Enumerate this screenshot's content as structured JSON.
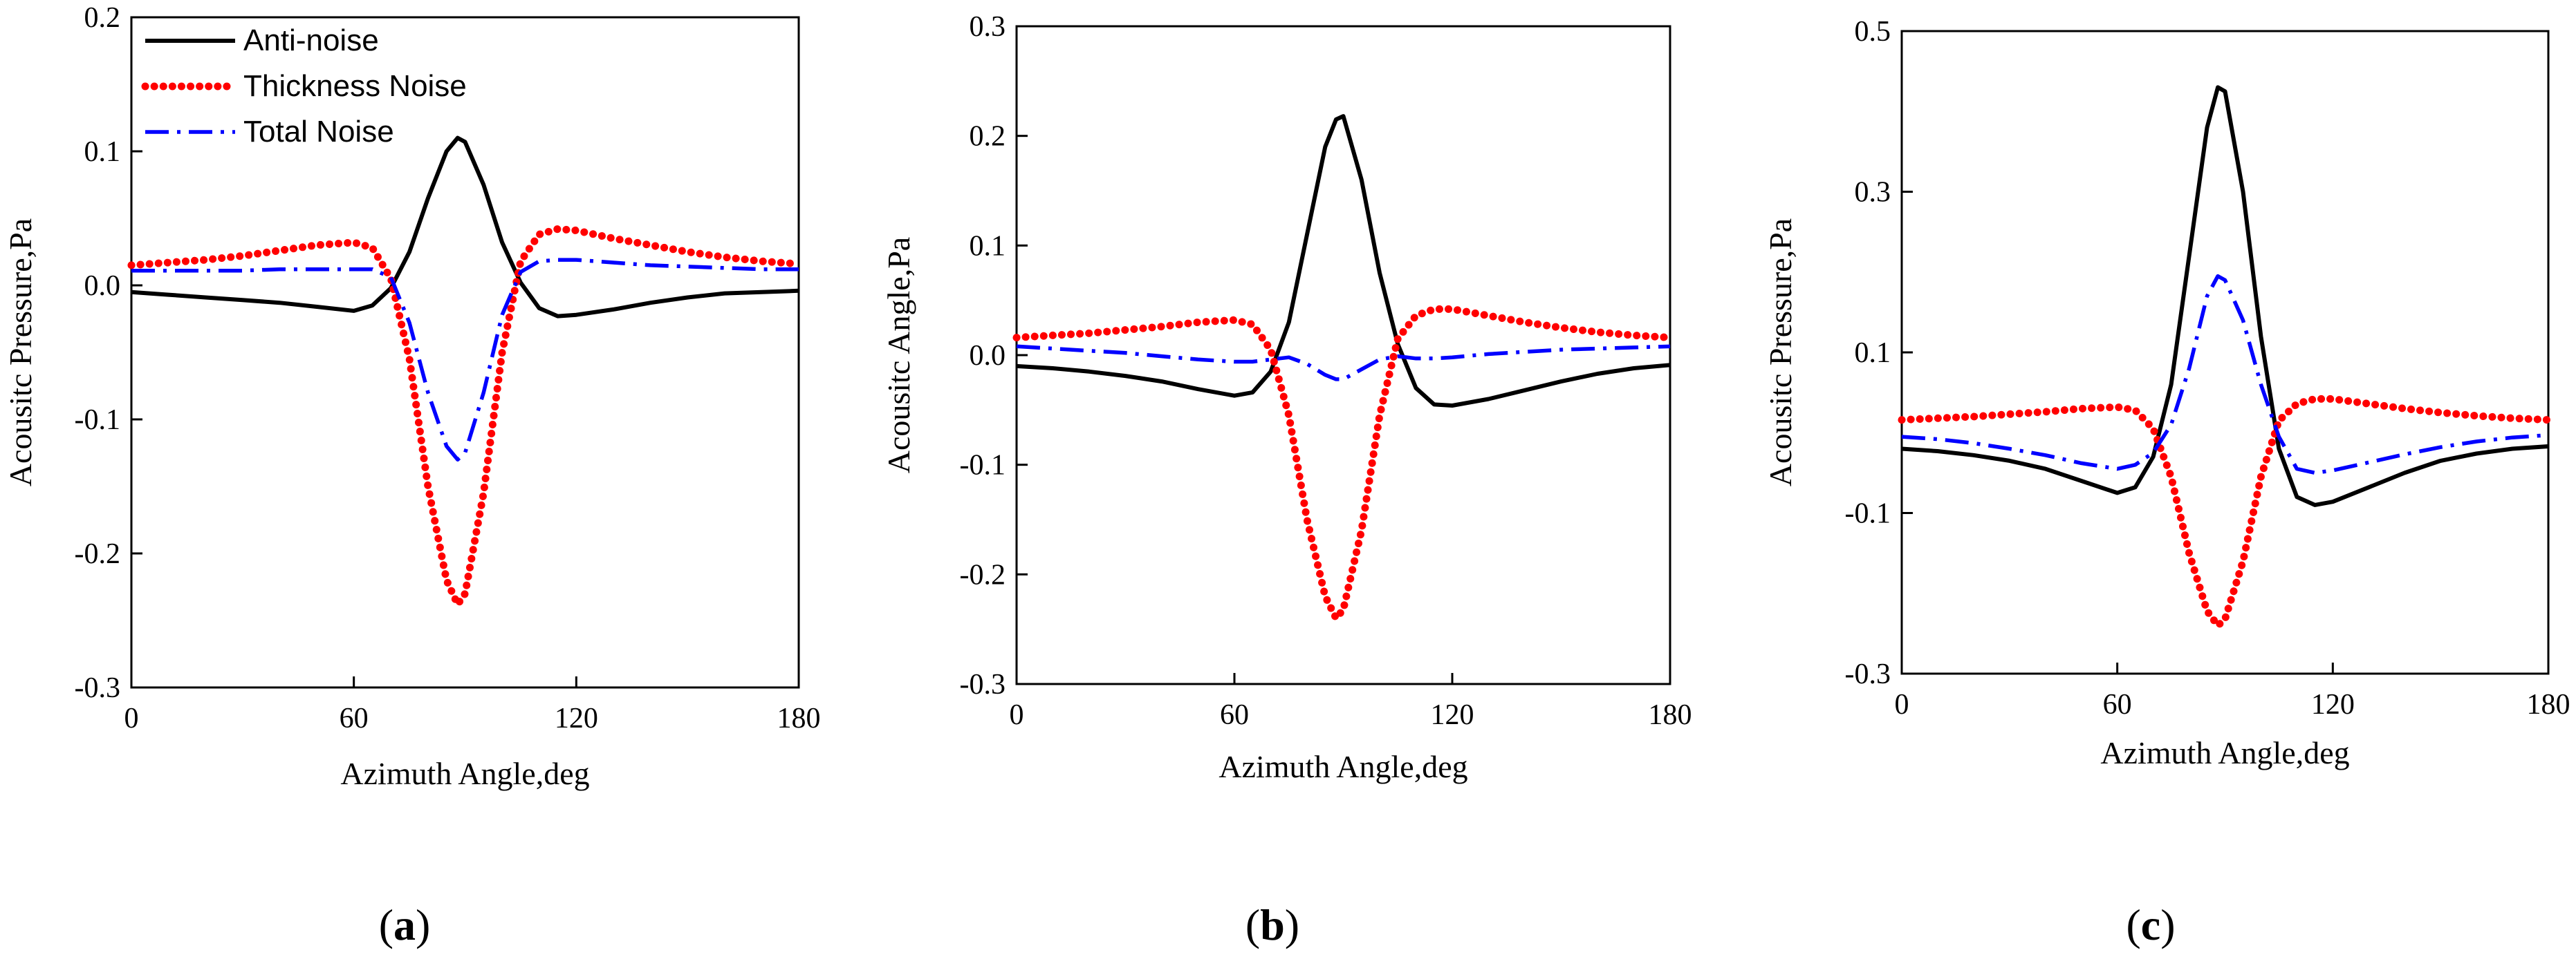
{
  "chart_data": [
    {
      "type": "line",
      "panel": "a",
      "panel_label": "a",
      "xlabel": "Azimuth Angle,deg",
      "ylabel": "Acousitc Pressure,Pa",
      "xlim": [
        0,
        180
      ],
      "ylim": [
        -0.3,
        0.2
      ],
      "xticks": [
        0,
        60,
        120,
        180
      ],
      "xtick_labels": [
        "0",
        "60",
        "120",
        "180"
      ],
      "yticks": [
        -0.3,
        -0.2,
        -0.1,
        0.0,
        0.1,
        0.2
      ],
      "ytick_labels": [
        "-0.3",
        "-0.2",
        "-0.1",
        "0.0",
        "0.1",
        "0.2"
      ],
      "legend": {
        "position": "top-left",
        "entries": [
          "Anti-noise",
          "Thickness Noise",
          "Total Noise"
        ]
      },
      "x": [
        0,
        10,
        20,
        30,
        40,
        50,
        60,
        65,
        70,
        75,
        80,
        85,
        88,
        90,
        95,
        100,
        105,
        110,
        115,
        120,
        130,
        140,
        150,
        160,
        170,
        180
      ],
      "series": [
        {
          "name": "Anti-noise",
          "color": "#000000",
          "style": "solid",
          "values": [
            -0.005,
            -0.007,
            -0.009,
            -0.011,
            -0.013,
            -0.016,
            -0.019,
            -0.015,
            -0.002,
            0.025,
            0.065,
            0.1,
            0.11,
            0.107,
            0.075,
            0.032,
            0.002,
            -0.017,
            -0.023,
            -0.022,
            -0.018,
            -0.013,
            -0.009,
            -0.006,
            -0.005,
            -0.004
          ]
        },
        {
          "name": "Thickness Noise",
          "color": "#ff0000",
          "style": "dotted",
          "values": [
            0.015,
            0.017,
            0.019,
            0.022,
            0.026,
            0.03,
            0.032,
            0.028,
            0.005,
            -0.055,
            -0.15,
            -0.22,
            -0.238,
            -0.23,
            -0.155,
            -0.05,
            0.018,
            0.038,
            0.042,
            0.041,
            0.035,
            0.03,
            0.025,
            0.021,
            0.018,
            0.016
          ]
        },
        {
          "name": "Total Noise",
          "color": "#0000ff",
          "style": "dashdot",
          "values": [
            0.011,
            0.011,
            0.011,
            0.011,
            0.012,
            0.012,
            0.012,
            0.012,
            0.006,
            -0.028,
            -0.08,
            -0.12,
            -0.13,
            -0.125,
            -0.08,
            -0.022,
            0.01,
            0.018,
            0.019,
            0.019,
            0.017,
            0.015,
            0.014,
            0.013,
            0.012,
            0.012
          ]
        }
      ]
    },
    {
      "type": "line",
      "panel": "b",
      "panel_label": "b",
      "xlabel": "Azimuth Angle,deg",
      "ylabel": "Acousitc Angle,Pa",
      "xlim": [
        0,
        180
      ],
      "ylim": [
        -0.3,
        0.3
      ],
      "xticks": [
        0,
        60,
        120,
        180
      ],
      "xtick_labels": [
        "0",
        "60",
        "120",
        "180"
      ],
      "yticks": [
        -0.3,
        -0.2,
        -0.1,
        0.0,
        0.1,
        0.2,
        0.3
      ],
      "ytick_labels": [
        "-0.3",
        "-0.2",
        "-0.1",
        "0.0",
        "0.1",
        "0.2",
        "0.3"
      ],
      "x": [
        0,
        10,
        20,
        30,
        40,
        50,
        60,
        65,
        70,
        75,
        80,
        85,
        88,
        90,
        95,
        100,
        105,
        110,
        115,
        120,
        130,
        140,
        150,
        160,
        170,
        180
      ],
      "series": [
        {
          "name": "Anti-noise",
          "color": "#000000",
          "style": "solid",
          "values": [
            -0.01,
            -0.012,
            -0.015,
            -0.019,
            -0.024,
            -0.031,
            -0.037,
            -0.034,
            -0.015,
            0.03,
            0.11,
            0.19,
            0.215,
            0.218,
            0.16,
            0.075,
            0.01,
            -0.03,
            -0.045,
            -0.046,
            -0.04,
            -0.032,
            -0.024,
            -0.017,
            -0.012,
            -0.009
          ]
        },
        {
          "name": "Thickness Noise",
          "color": "#ff0000",
          "style": "dotted",
          "values": [
            0.016,
            0.018,
            0.02,
            0.023,
            0.026,
            0.03,
            0.032,
            0.028,
            0.005,
            -0.055,
            -0.15,
            -0.22,
            -0.24,
            -0.232,
            -0.16,
            -0.055,
            0.015,
            0.036,
            0.042,
            0.042,
            0.036,
            0.03,
            0.025,
            0.021,
            0.018,
            0.016
          ]
        },
        {
          "name": "Total Noise",
          "color": "#0000ff",
          "style": "dashdot",
          "values": [
            0.008,
            0.006,
            0.004,
            0.002,
            -0.001,
            -0.004,
            -0.006,
            -0.006,
            -0.004,
            -0.002,
            -0.008,
            -0.018,
            -0.022,
            -0.022,
            -0.013,
            -0.004,
            -0.001,
            -0.003,
            -0.003,
            -0.002,
            0.001,
            0.003,
            0.005,
            0.006,
            0.007,
            0.008
          ]
        }
      ]
    },
    {
      "type": "line",
      "panel": "c",
      "panel_label": "c",
      "xlabel": "Azimuth Angle,deg",
      "ylabel": "Acousitc Pressure,Pa",
      "xlim": [
        0,
        180
      ],
      "ylim": [
        -0.3,
        0.5
      ],
      "xticks": [
        0,
        60,
        120,
        180
      ],
      "xtick_labels": [
        "0",
        "60",
        "120",
        "180"
      ],
      "yticks": [
        -0.3,
        -0.1,
        0.1,
        0.3,
        0.5
      ],
      "ytick_labels": [
        "-0.3",
        "-0.1",
        "0.1",
        "0.3",
        "0.5"
      ],
      "x": [
        0,
        10,
        20,
        30,
        40,
        50,
        60,
        65,
        70,
        75,
        80,
        85,
        88,
        90,
        95,
        100,
        105,
        110,
        115,
        120,
        130,
        140,
        150,
        160,
        170,
        180
      ],
      "series": [
        {
          "name": "Anti-noise",
          "color": "#000000",
          "style": "solid",
          "values": [
            -0.02,
            -0.023,
            -0.028,
            -0.035,
            -0.045,
            -0.06,
            -0.075,
            -0.068,
            -0.03,
            0.06,
            0.22,
            0.38,
            0.43,
            0.425,
            0.3,
            0.12,
            -0.02,
            -0.08,
            -0.09,
            -0.086,
            -0.068,
            -0.05,
            -0.035,
            -0.026,
            -0.02,
            -0.017
          ]
        },
        {
          "name": "Thickness Noise",
          "color": "#ff0000",
          "style": "dotted",
          "values": [
            0.016,
            0.018,
            0.02,
            0.023,
            0.026,
            0.03,
            0.032,
            0.028,
            0.005,
            -0.055,
            -0.15,
            -0.222,
            -0.24,
            -0.232,
            -0.16,
            -0.055,
            0.015,
            0.036,
            0.042,
            0.042,
            0.036,
            0.03,
            0.025,
            0.021,
            0.018,
            0.016
          ]
        },
        {
          "name": "Total Noise",
          "color": "#0000ff",
          "style": "dashdot",
          "values": [
            -0.005,
            -0.008,
            -0.013,
            -0.02,
            -0.028,
            -0.038,
            -0.045,
            -0.04,
            -0.025,
            0.01,
            0.08,
            0.17,
            0.195,
            0.19,
            0.14,
            0.06,
            -0.005,
            -0.045,
            -0.05,
            -0.047,
            -0.037,
            -0.027,
            -0.018,
            -0.011,
            -0.006,
            -0.003
          ]
        }
      ]
    }
  ]
}
